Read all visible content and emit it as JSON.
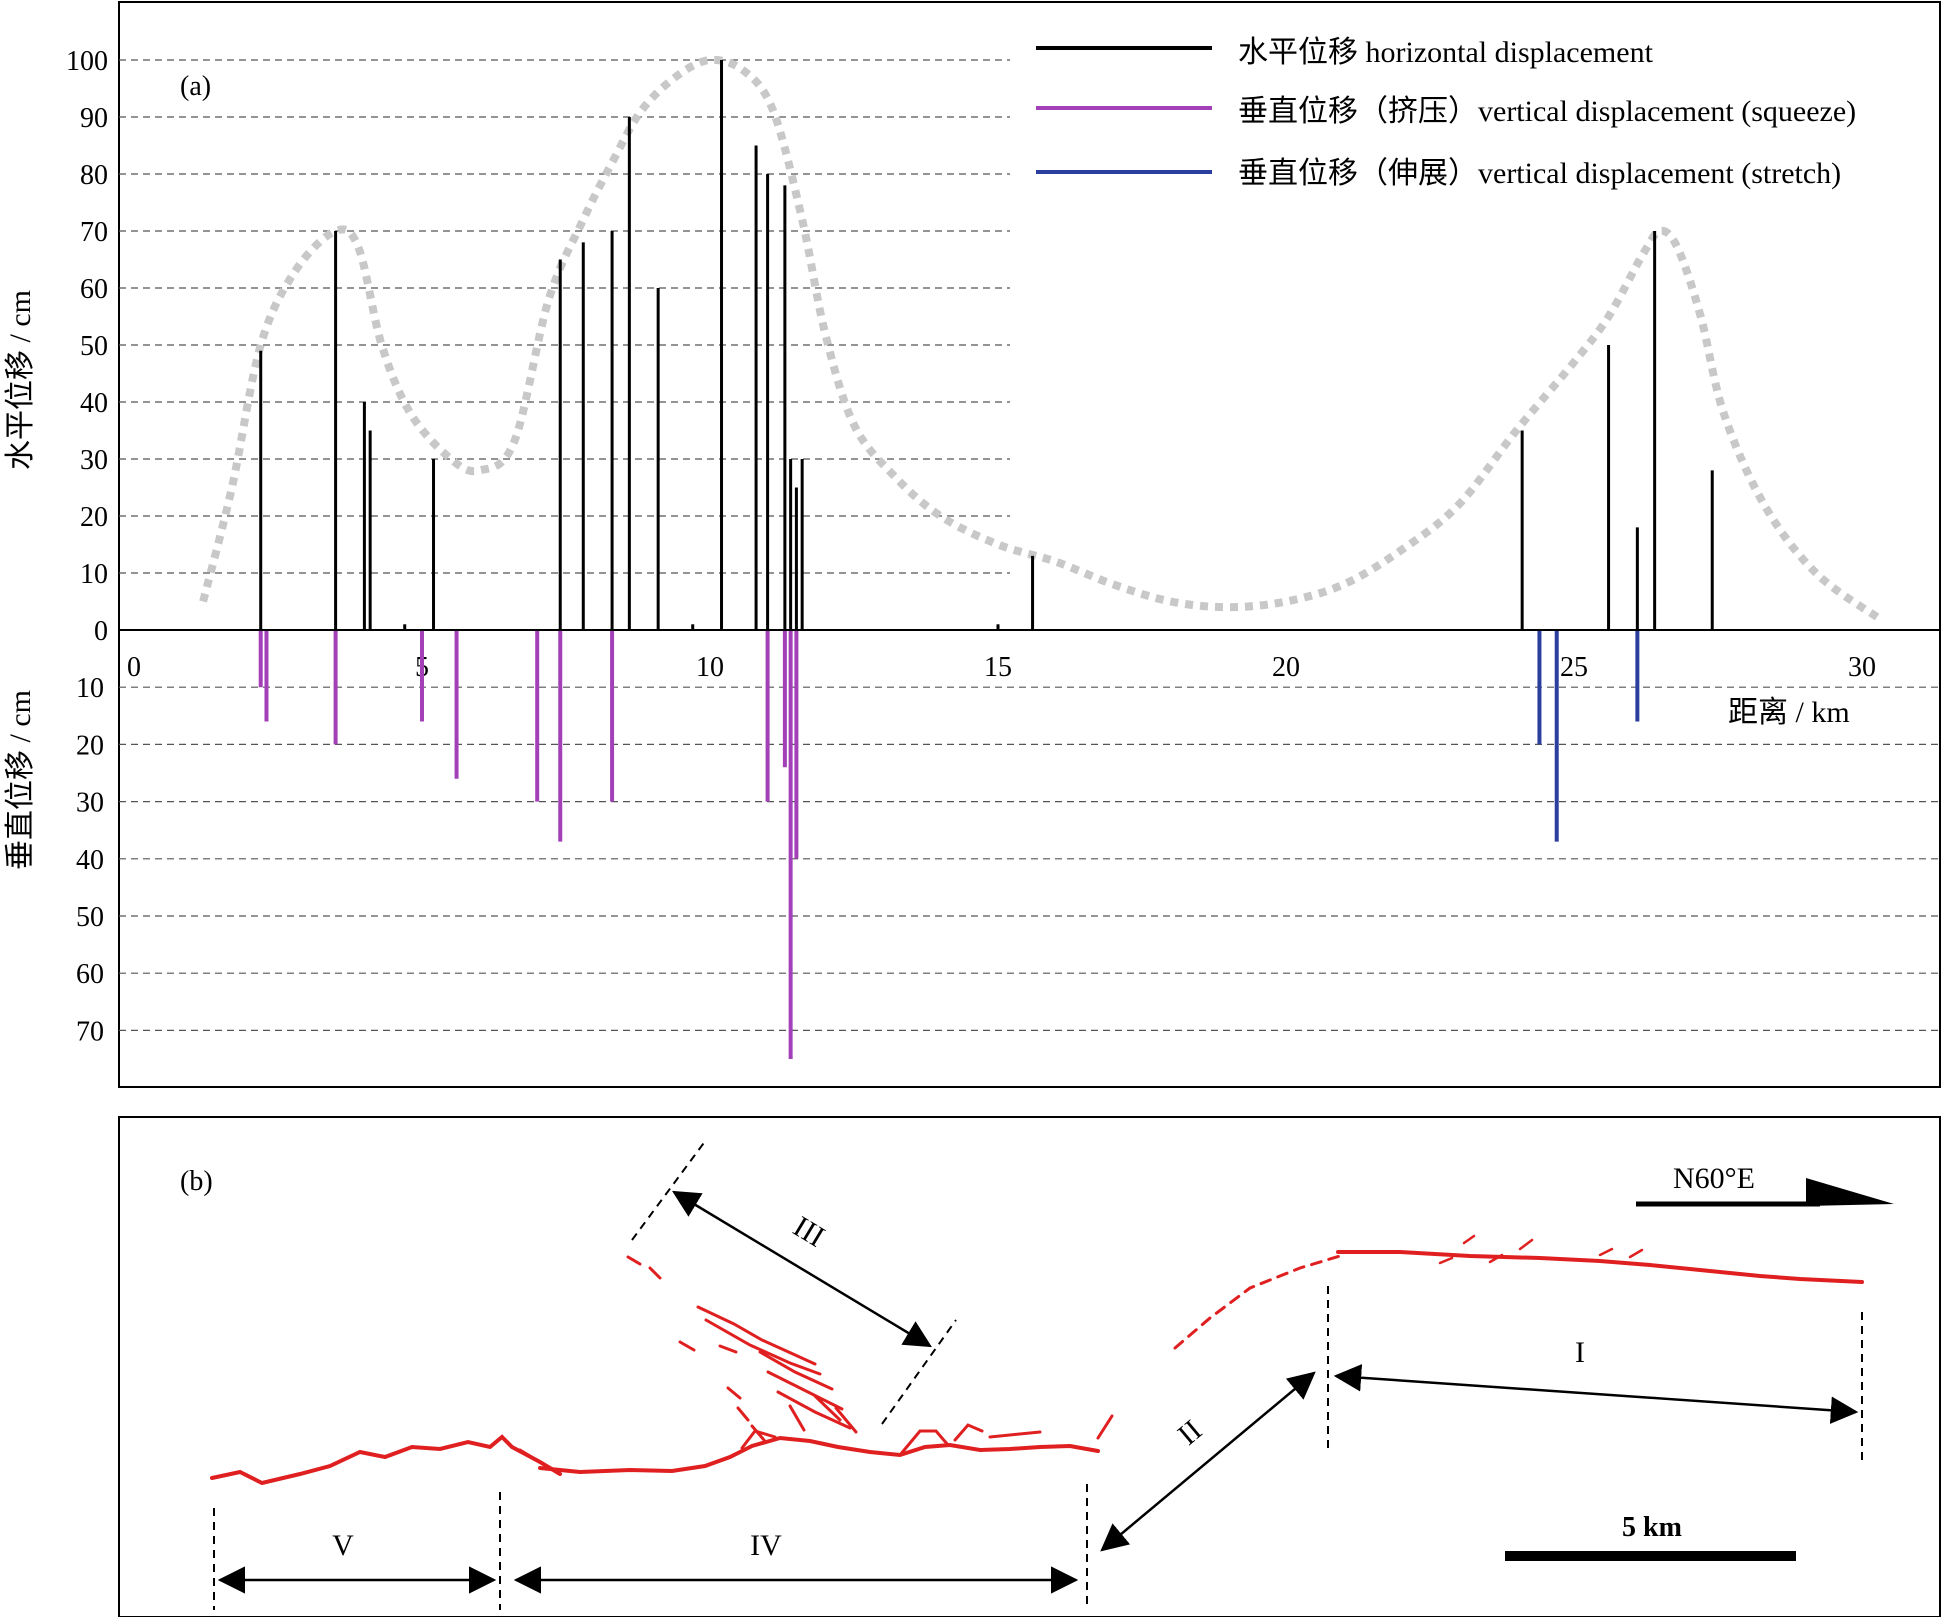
{
  "chart_data": [
    {
      "type": "bar",
      "panel_label": "(a)",
      "xlabel": "距离 / km",
      "ylabel_top": "水平位移 / cm",
      "ylabel_bottom": "垂直位移 / cm",
      "xlim": [
        0,
        31.5
      ],
      "xticks": [
        0,
        5,
        10,
        15,
        20,
        25,
        30
      ],
      "ylim_top": [
        0,
        100
      ],
      "yticks_top": [
        0,
        10,
        20,
        30,
        40,
        50,
        60,
        70,
        80,
        90,
        100
      ],
      "ylim_bottom": [
        0,
        80
      ],
      "yticks_bottom": [
        10,
        20,
        30,
        40,
        50,
        60,
        70
      ],
      "grid": true,
      "legend_position": "top-right",
      "series": [
        {
          "name": "水平位移 horizontal displacement",
          "color": "#000000",
          "direction": "up",
          "points": [
            {
              "x": 2.2,
              "y": 49
            },
            {
              "x": 3.5,
              "y": 70
            },
            {
              "x": 4.0,
              "y": 40
            },
            {
              "x": 4.1,
              "y": 35
            },
            {
              "x": 4.7,
              "y": 1
            },
            {
              "x": 5.2,
              "y": 30
            },
            {
              "x": 7.4,
              "y": 65
            },
            {
              "x": 7.8,
              "y": 68
            },
            {
              "x": 8.3,
              "y": 70
            },
            {
              "x": 8.6,
              "y": 90
            },
            {
              "x": 9.1,
              "y": 60
            },
            {
              "x": 9.7,
              "y": 1
            },
            {
              "x": 10.2,
              "y": 100
            },
            {
              "x": 10.8,
              "y": 85
            },
            {
              "x": 11.0,
              "y": 80
            },
            {
              "x": 11.3,
              "y": 78
            },
            {
              "x": 11.4,
              "y": 30
            },
            {
              "x": 11.5,
              "y": 25
            },
            {
              "x": 11.6,
              "y": 30
            },
            {
              "x": 15.0,
              "y": 1
            },
            {
              "x": 15.6,
              "y": 13
            },
            {
              "x": 24.1,
              "y": 35
            },
            {
              "x": 25.6,
              "y": 50
            },
            {
              "x": 26.1,
              "y": 18
            },
            {
              "x": 26.4,
              "y": 70
            },
            {
              "x": 27.4,
              "y": 28
            }
          ]
        },
        {
          "name": "垂直位移（挤压）vertical displacement (squeeze)",
          "color": "#a340b8",
          "direction": "down",
          "points": [
            {
              "x": 2.2,
              "y": 10
            },
            {
              "x": 2.3,
              "y": 16
            },
            {
              "x": 3.5,
              "y": 20
            },
            {
              "x": 5.0,
              "y": 16
            },
            {
              "x": 5.6,
              "y": 26
            },
            {
              "x": 7.0,
              "y": 30
            },
            {
              "x": 7.4,
              "y": 37
            },
            {
              "x": 8.3,
              "y": 30
            },
            {
              "x": 11.0,
              "y": 30
            },
            {
              "x": 11.3,
              "y": 24
            },
            {
              "x": 11.4,
              "y": 75
            },
            {
              "x": 11.5,
              "y": 40
            }
          ]
        },
        {
          "name": "垂直位移（伸展）vertical displacement (stretch)",
          "color": "#2a3f9e",
          "direction": "down",
          "points": [
            {
              "x": 24.4,
              "y": 20
            },
            {
              "x": 24.7,
              "y": 37
            },
            {
              "x": 26.1,
              "y": 16
            }
          ]
        }
      ],
      "envelope": {
        "color": "#c8c8c8",
        "points": [
          [
            1.2,
            5
          ],
          [
            1.7,
            25
          ],
          [
            2.2,
            50
          ],
          [
            2.8,
            63
          ],
          [
            3.5,
            70
          ],
          [
            3.9,
            67
          ],
          [
            4.3,
            50
          ],
          [
            4.8,
            38
          ],
          [
            5.5,
            30
          ],
          [
            6.0,
            28
          ],
          [
            6.6,
            33
          ],
          [
            7.2,
            58
          ],
          [
            7.8,
            72
          ],
          [
            8.3,
            82
          ],
          [
            8.8,
            91
          ],
          [
            9.4,
            97
          ],
          [
            10.0,
            100
          ],
          [
            10.6,
            98
          ],
          [
            11.1,
            91
          ],
          [
            11.6,
            72
          ],
          [
            12.0,
            52
          ],
          [
            12.5,
            36
          ],
          [
            13.2,
            27
          ],
          [
            14.0,
            20
          ],
          [
            15.0,
            15
          ],
          [
            16.0,
            12
          ],
          [
            17.0,
            8
          ],
          [
            18.0,
            5
          ],
          [
            19.0,
            4
          ],
          [
            20.0,
            5
          ],
          [
            21.0,
            8
          ],
          [
            22.0,
            14
          ],
          [
            23.0,
            22
          ],
          [
            24.0,
            35
          ],
          [
            25.0,
            47
          ],
          [
            25.6,
            55
          ],
          [
            26.2,
            66
          ],
          [
            26.5,
            70
          ],
          [
            26.8,
            67
          ],
          [
            27.2,
            55
          ],
          [
            27.6,
            38
          ],
          [
            28.3,
            22
          ],
          [
            29.2,
            10
          ],
          [
            30.3,
            2
          ]
        ]
      }
    },
    {
      "type": "diagram",
      "panel_label": "(b)",
      "direction_label": "N60°E",
      "scale_label": "5 km",
      "segment_labels": [
        "I",
        "II",
        "III",
        "IV",
        "V"
      ],
      "rupture_color": "#e02020"
    }
  ]
}
